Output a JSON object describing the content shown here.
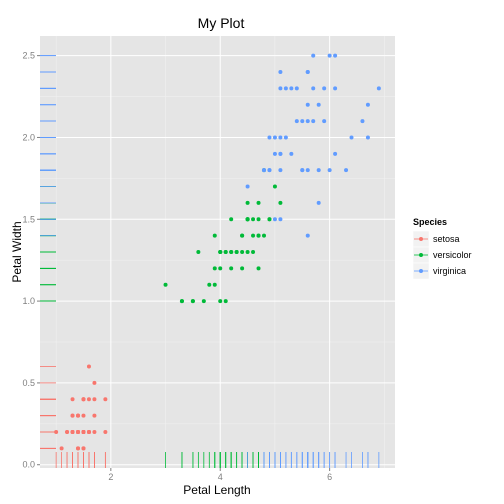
{
  "chart_data": {
    "type": "scatter",
    "title": "My Plot",
    "xlabel": "Petal Length",
    "ylabel": "Petal Width",
    "xlim": [
      0.705,
      7.195
    ],
    "ylim": [
      -0.02,
      2.62
    ],
    "x_ticks": [
      2,
      4,
      6
    ],
    "x_tick_labels": [
      "2",
      "4",
      "6"
    ],
    "y_ticks": [
      0.0,
      0.5,
      1.0,
      1.5,
      2.0,
      2.5
    ],
    "y_tick_labels": [
      "0.0",
      "0.5",
      "1.0",
      "1.5",
      "2.0",
      "2.5"
    ],
    "grid": true,
    "rug": true,
    "legend": {
      "title": "Species",
      "position": "right",
      "entries": [
        "setosa",
        "versicolor",
        "virginica"
      ]
    },
    "colors": {
      "setosa": "#F8766D",
      "versicolor": "#00BA38",
      "virginica": "#619CFF",
      "panel": "#E5E5E5",
      "grid_major": "#FFFFFF",
      "grid_minor": "#F2F2F2"
    },
    "series": [
      {
        "name": "setosa",
        "x": [
          1.4,
          1.4,
          1.3,
          1.5,
          1.4,
          1.7,
          1.4,
          1.5,
          1.4,
          1.5,
          1.5,
          1.6,
          1.4,
          1.1,
          1.2,
          1.5,
          1.3,
          1.4,
          1.7,
          1.5,
          1.7,
          1.5,
          1.0,
          1.7,
          1.9,
          1.6,
          1.6,
          1.5,
          1.4,
          1.6,
          1.6,
          1.5,
          1.5,
          1.4,
          1.5,
          1.2,
          1.3,
          1.4,
          1.3,
          1.5,
          1.3,
          1.3,
          1.3,
          1.6,
          1.9,
          1.4,
          1.6,
          1.4,
          1.5,
          1.4
        ],
        "y": [
          0.2,
          0.2,
          0.2,
          0.2,
          0.2,
          0.4,
          0.3,
          0.2,
          0.2,
          0.1,
          0.2,
          0.2,
          0.1,
          0.1,
          0.2,
          0.4,
          0.4,
          0.3,
          0.3,
          0.3,
          0.2,
          0.4,
          0.2,
          0.5,
          0.2,
          0.2,
          0.4,
          0.2,
          0.2,
          0.2,
          0.2,
          0.4,
          0.1,
          0.2,
          0.2,
          0.2,
          0.2,
          0.1,
          0.2,
          0.2,
          0.3,
          0.3,
          0.2,
          0.6,
          0.4,
          0.3,
          0.2,
          0.2,
          0.2,
          0.2
        ]
      },
      {
        "name": "versicolor",
        "x": [
          4.7,
          4.5,
          4.9,
          4.0,
          4.6,
          4.5,
          4.7,
          3.3,
          4.6,
          3.9,
          3.5,
          4.2,
          4.0,
          4.7,
          3.6,
          4.4,
          4.5,
          4.1,
          4.5,
          3.9,
          4.8,
          4.0,
          4.9,
          4.7,
          4.3,
          4.4,
          4.8,
          5.0,
          4.5,
          3.5,
          3.8,
          3.7,
          3.9,
          5.1,
          4.5,
          4.5,
          4.7,
          4.4,
          4.1,
          4.0,
          4.4,
          4.6,
          4.0,
          3.3,
          4.2,
          4.2,
          4.2,
          4.3,
          3.0,
          4.1
        ],
        "y": [
          1.4,
          1.5,
          1.5,
          1.3,
          1.5,
          1.3,
          1.6,
          1.0,
          1.3,
          1.4,
          1.0,
          1.5,
          1.0,
          1.4,
          1.3,
          1.4,
          1.5,
          1.0,
          1.5,
          1.1,
          1.8,
          1.3,
          1.5,
          1.2,
          1.3,
          1.4,
          1.4,
          1.7,
          1.5,
          1.0,
          1.1,
          1.0,
          1.2,
          1.6,
          1.5,
          1.6,
          1.5,
          1.3,
          1.3,
          1.3,
          1.2,
          1.4,
          1.2,
          1.0,
          1.3,
          1.2,
          1.3,
          1.3,
          1.1,
          1.3
        ]
      },
      {
        "name": "virginica",
        "x": [
          6.0,
          5.1,
          5.9,
          5.6,
          5.8,
          6.6,
          4.5,
          6.3,
          5.8,
          6.1,
          5.1,
          5.3,
          5.5,
          5.0,
          5.1,
          5.3,
          5.5,
          6.7,
          6.9,
          5.0,
          5.7,
          4.9,
          6.7,
          4.9,
          5.7,
          6.0,
          4.8,
          4.9,
          5.6,
          5.8,
          6.1,
          6.4,
          5.6,
          5.1,
          5.6,
          6.1,
          5.6,
          5.5,
          4.8,
          5.4,
          5.6,
          5.1,
          5.1,
          5.9,
          5.7,
          5.2,
          5.0,
          5.2,
          5.4,
          5.1
        ],
        "y": [
          2.5,
          1.9,
          2.1,
          1.8,
          2.2,
          2.1,
          1.7,
          1.8,
          1.8,
          2.5,
          2.0,
          1.9,
          2.1,
          2.0,
          2.4,
          2.3,
          1.8,
          2.2,
          2.3,
          1.5,
          2.3,
          2.0,
          2.0,
          1.8,
          2.1,
          1.8,
          1.8,
          1.8,
          2.1,
          1.6,
          1.9,
          2.0,
          2.2,
          1.5,
          1.4,
          2.3,
          2.4,
          1.8,
          1.8,
          2.1,
          2.4,
          2.3,
          1.9,
          2.3,
          2.5,
          2.3,
          1.9,
          2.0,
          2.3,
          1.8
        ]
      }
    ]
  }
}
